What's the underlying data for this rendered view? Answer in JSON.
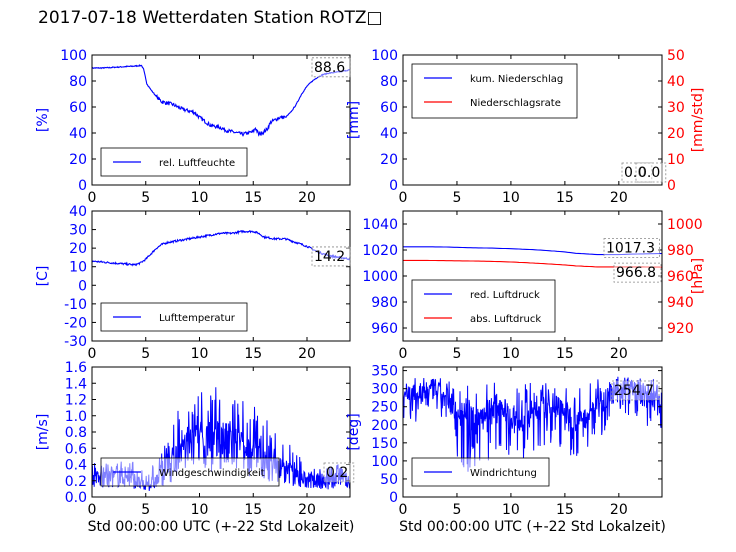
{
  "title": "2017-07-18 Wetterdaten Station ROTZ",
  "title_suffix_glyph": "□",
  "x_axis_label": "Std 00:00:00 UTC (+-22 Std Lokalzeit)",
  "colors": {
    "blue": "#0000ff",
    "red": "#ff0000",
    "black": "#000000"
  },
  "chart_data": [
    {
      "id": "humidity",
      "type": "line",
      "xlim": [
        0,
        24
      ],
      "ylim": [
        0,
        100
      ],
      "xticks": [
        0,
        5,
        10,
        15,
        20
      ],
      "yticks": [
        0,
        20,
        40,
        60,
        80,
        100
      ],
      "ylabel": "[%]",
      "ylabel_color": "#0000ff",
      "grid": false,
      "legend_position": "lower-left",
      "annotations": [
        {
          "text": "88.6"
        }
      ],
      "series": [
        {
          "name": "rel. Luftfeuchte",
          "color": "#0000ff",
          "x": [
            0,
            1,
            2,
            3,
            4,
            4.6,
            4.8,
            5.1,
            5.5,
            6,
            6.5,
            7,
            7.5,
            8,
            8.5,
            9,
            9.5,
            10,
            10.5,
            11,
            11.5,
            12,
            12.5,
            13,
            13.5,
            14,
            14.5,
            15,
            15.2,
            15.5,
            16,
            16.3,
            16.6,
            17,
            17.5,
            18,
            18.5,
            19,
            19.5,
            20,
            20.5,
            21,
            21.5,
            22,
            23,
            24
          ],
          "y": [
            90,
            90,
            90.5,
            91,
            91.5,
            92,
            89,
            78,
            73,
            68,
            64,
            63,
            62,
            60,
            58,
            57,
            56,
            52,
            49,
            46,
            45,
            44,
            42,
            41,
            40,
            39,
            40,
            41,
            44,
            39,
            41,
            43,
            48,
            50,
            52,
            52,
            56,
            62,
            70,
            76,
            80,
            83,
            85,
            86,
            87,
            88.6
          ]
        }
      ]
    },
    {
      "id": "precipitation",
      "type": "line",
      "xlim": [
        0,
        24
      ],
      "ylim": [
        0,
        100
      ],
      "ylim_right": [
        0,
        50
      ],
      "xticks": [
        0,
        5,
        10,
        15,
        20
      ],
      "yticks": [
        0,
        20,
        40,
        60,
        80,
        100
      ],
      "yticks_right": [
        0,
        10,
        20,
        30,
        40,
        50
      ],
      "ylabel": "[mm]",
      "ylabel_color": "#0000ff",
      "ylabel_right": "[mm/std]",
      "ylabel_right_color": "#ff0000",
      "grid": false,
      "legend_position": "upper-left",
      "annotations": [
        {
          "text": "0.0"
        },
        {
          "text": "0.0"
        }
      ],
      "series": [
        {
          "name": "kum. Niederschlag",
          "color": "#0000ff",
          "x": [
            0,
            24
          ],
          "y": [
            0,
            0
          ],
          "axis": "left"
        },
        {
          "name": "Niederschlagsrate",
          "color": "#ff0000",
          "x": [
            0,
            24
          ],
          "y": [
            0,
            0
          ],
          "axis": "right"
        }
      ]
    },
    {
      "id": "temperature",
      "type": "line",
      "xlim": [
        0,
        24
      ],
      "ylim": [
        -30,
        40
      ],
      "xticks": [
        0,
        5,
        10,
        15,
        20
      ],
      "yticks": [
        -30,
        -20,
        -10,
        0,
        10,
        20,
        30,
        40
      ],
      "ylabel": "[C]",
      "ylabel_color": "#0000ff",
      "grid": false,
      "legend_position": "lower-left",
      "annotations": [
        {
          "text": "14.2"
        }
      ],
      "series": [
        {
          "name": "Lufttemperatur",
          "color": "#0000ff",
          "x": [
            0,
            1,
            2,
            3,
            4,
            4.5,
            5,
            5.5,
            6,
            6.5,
            7,
            8,
            9,
            10,
            11,
            12,
            13,
            14,
            15,
            15.5,
            16,
            17,
            18,
            19,
            20,
            21,
            22,
            23,
            24
          ],
          "y": [
            13,
            12.5,
            12,
            11.5,
            11,
            12,
            14,
            17,
            20,
            22,
            23,
            24,
            25,
            26,
            27,
            28,
            28,
            29,
            29,
            28,
            26,
            25,
            25,
            23,
            21,
            18,
            16,
            15,
            14.2
          ]
        }
      ]
    },
    {
      "id": "pressure",
      "type": "line",
      "xlim": [
        0,
        24
      ],
      "ylim": [
        950,
        1050
      ],
      "ylim_right": [
        910,
        1010
      ],
      "xticks": [
        0,
        5,
        10,
        15,
        20
      ],
      "yticks": [
        960,
        980,
        1000,
        1020,
        1040
      ],
      "yticks_right": [
        920,
        940,
        960,
        980,
        1000
      ],
      "ylabel": "",
      "ylabel_right": "[hPa]",
      "ylabel_right_color": "#ff0000",
      "grid": false,
      "legend_position": "lower-left",
      "annotations": [
        {
          "text": "1017.3"
        },
        {
          "text": "966.8"
        }
      ],
      "series": [
        {
          "name": "red. Luftdruck",
          "color": "#0000ff",
          "axis": "left",
          "x": [
            0,
            2,
            4,
            6,
            8,
            10,
            12,
            14,
            15,
            16,
            18,
            20,
            22,
            24
          ],
          "y": [
            1022.5,
            1022.5,
            1022.3,
            1021.8,
            1021.5,
            1021,
            1020.3,
            1019.2,
            1018.5,
            1017.5,
            1016.5,
            1016.5,
            1017,
            1017.3
          ]
        },
        {
          "name": "abs. Luftdruck",
          "color": "#ff0000",
          "axis": "right",
          "x": [
            0,
            2,
            4,
            6,
            8,
            10,
            12,
            14,
            15,
            16,
            18,
            20,
            22,
            24
          ],
          "y": [
            972,
            972,
            971.8,
            971.6,
            971.3,
            970.8,
            970,
            969,
            968.5,
            967.8,
            967,
            967,
            967,
            966.8
          ]
        }
      ]
    },
    {
      "id": "wind_speed",
      "type": "line",
      "xlim": [
        0,
        24
      ],
      "ylim": [
        0,
        1.6
      ],
      "xticks": [
        0,
        5,
        10,
        15,
        20
      ],
      "yticks": [
        0.0,
        0.2,
        0.4,
        0.6,
        0.8,
        1.0,
        1.2,
        1.4,
        1.6
      ],
      "xlabel": "Std 00:00:00 UTC (+-22 Std Lokalzeit)",
      "ylabel": "[m/s]",
      "ylabel_color": "#0000ff",
      "grid": false,
      "legend_position": "lower-left",
      "annotations": [
        {
          "text": "0.2"
        }
      ],
      "series": [
        {
          "name": "Windgeschwindigkeit",
          "color": "#0000ff",
          "x": [
            0,
            1,
            2,
            3,
            4,
            5,
            6,
            7,
            8,
            9,
            10,
            11,
            12,
            13,
            14,
            15,
            16,
            17,
            18,
            19,
            20,
            21,
            22,
            23,
            24
          ],
          "y": [
            0.3,
            0.25,
            0.3,
            0.3,
            0.25,
            0.15,
            0.25,
            0.4,
            0.55,
            0.7,
            0.8,
            0.75,
            0.8,
            0.75,
            0.7,
            0.6,
            0.5,
            0.45,
            0.4,
            0.3,
            0.25,
            0.25,
            0.2,
            0.3,
            0.2
          ],
          "y_max": [
            0.45,
            0.4,
            0.45,
            0.45,
            0.45,
            0.3,
            0.45,
            0.7,
            1.1,
            1.15,
            1.35,
            1.4,
            1.35,
            1.3,
            1.2,
            1.2,
            1.0,
            0.9,
            0.75,
            0.55,
            0.45,
            0.4,
            0.4,
            0.45,
            0.25
          ]
        }
      ]
    },
    {
      "id": "wind_direction",
      "type": "line",
      "xlim": [
        0,
        24
      ],
      "ylim": [
        0,
        360
      ],
      "xticks": [
        0,
        5,
        10,
        15,
        20
      ],
      "yticks": [
        0,
        50,
        100,
        150,
        200,
        250,
        300,
        350
      ],
      "xlabel": "Std 00:00:00 UTC (+-22 Std Lokalzeit)",
      "ylabel": "[deg]",
      "ylabel_color": "#0000ff",
      "grid": false,
      "legend_position": "lower-left",
      "annotations": [
        {
          "text": "254.7"
        }
      ],
      "series": [
        {
          "name": "Windrichtung",
          "color": "#0000ff",
          "x": [
            0,
            1,
            2,
            3,
            4,
            5,
            6,
            7,
            8,
            9,
            10,
            11,
            12,
            13,
            14,
            15,
            16,
            17,
            18,
            19,
            20,
            21,
            22,
            23,
            24
          ],
          "y": [
            300,
            280,
            290,
            300,
            270,
            240,
            230,
            220,
            250,
            260,
            220,
            210,
            230,
            250,
            260,
            240,
            210,
            220,
            260,
            280,
            300,
            310,
            290,
            280,
            254.7
          ],
          "y_min": [
            220,
            200,
            230,
            240,
            160,
            80,
            60,
            80,
            100,
            140,
            100,
            90,
            120,
            140,
            150,
            120,
            100,
            110,
            150,
            200,
            230,
            220,
            200,
            190,
            180
          ],
          "y_max": [
            330,
            330,
            330,
            330,
            330,
            320,
            310,
            300,
            330,
            330,
            320,
            310,
            320,
            320,
            330,
            320,
            300,
            320,
            330,
            330,
            335,
            335,
            330,
            330,
            320
          ]
        }
      ]
    }
  ]
}
